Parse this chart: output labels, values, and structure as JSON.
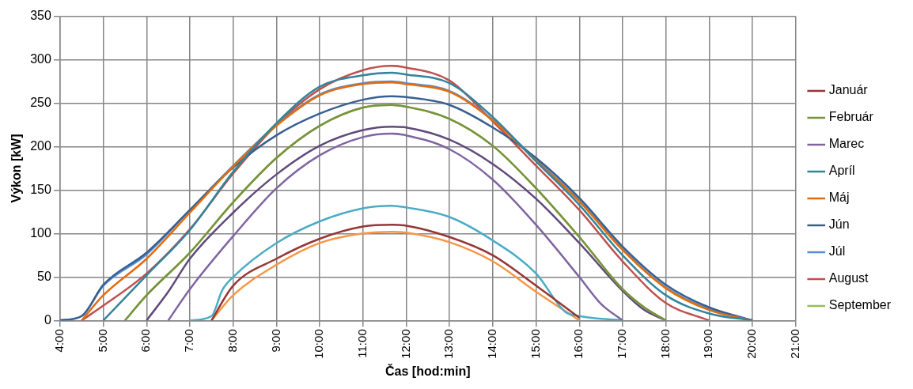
{
  "chart_data": {
    "type": "line",
    "xlabel": "Čas [hod:min]",
    "ylabel": "Výkon [kW]",
    "xlim": [
      4,
      21
    ],
    "xticks": [
      {
        "value": 4,
        "label": "4:00"
      },
      {
        "value": 5,
        "label": "5:00"
      },
      {
        "value": 6,
        "label": "6:00"
      },
      {
        "value": 7,
        "label": "7:00"
      },
      {
        "value": 8,
        "label": "8:00"
      },
      {
        "value": 9,
        "label": "9:00"
      },
      {
        "value": 10,
        "label": "10:00"
      },
      {
        "value": 11,
        "label": "11:00"
      },
      {
        "value": 12,
        "label": "12:00"
      },
      {
        "value": 13,
        "label": "13:00"
      },
      {
        "value": 14,
        "label": "14:00"
      },
      {
        "value": 15,
        "label": "15:00"
      },
      {
        "value": 16,
        "label": "16:00"
      },
      {
        "value": 17,
        "label": "17:00"
      },
      {
        "value": 18,
        "label": "18:00"
      },
      {
        "value": 19,
        "label": "19:00"
      },
      {
        "value": 20,
        "label": "20:00"
      },
      {
        "value": 21,
        "label": "21:00"
      }
    ],
    "ylim": [
      0,
      350
    ],
    "yticks": [
      0,
      50,
      100,
      150,
      200,
      250,
      300,
      350
    ],
    "grid": true,
    "legend": "right",
    "line_style": "solid",
    "series": [
      {
        "name": "Január",
        "color": "#953735",
        "x": [
          7.5,
          8,
          9,
          10,
          11,
          11.67,
          12,
          13,
          14,
          15,
          16
        ],
        "values": [
          0,
          40,
          71,
          94,
          108,
          110,
          109,
          96,
          75,
          40,
          3
        ]
      },
      {
        "name": "Február",
        "color": "#77933c",
        "x": [
          5.5,
          6,
          7,
          8,
          9,
          10,
          11,
          11.67,
          12,
          13,
          14,
          15,
          16,
          17,
          17.5,
          18
        ],
        "values": [
          0,
          29,
          78,
          136,
          187,
          224,
          245,
          248,
          246,
          232,
          201,
          152,
          96,
          36,
          15,
          0
        ]
      },
      {
        "name": "Marec",
        "color": "#8064a2",
        "x": [
          6.5,
          7,
          8,
          9,
          10,
          11,
          11.67,
          12,
          13,
          14,
          15,
          16,
          16.5,
          17
        ],
        "values": [
          0,
          36,
          97,
          152,
          190,
          211,
          215,
          213,
          197,
          162,
          110,
          50,
          19,
          0
        ]
      },
      {
        "name": "Apríl",
        "color": "#31859c",
        "x": [
          5,
          6,
          7,
          8,
          9,
          10,
          11,
          11.67,
          12,
          13,
          14,
          15,
          16,
          17,
          18,
          19,
          20
        ],
        "values": [
          0,
          52,
          104,
          171,
          227,
          269,
          282,
          285,
          283,
          273,
          234,
          183,
          133,
          75,
          29,
          8,
          0
        ]
      },
      {
        "name": "Máj",
        "color": "#e46c0a",
        "x": [
          4.5,
          5,
          6,
          7,
          8,
          9,
          10,
          11,
          11.67,
          12,
          13,
          14,
          15,
          16,
          17,
          18,
          19,
          20
        ],
        "values": [
          0,
          29,
          71,
          124,
          177,
          224,
          259,
          272,
          274,
          272,
          263,
          230,
          184,
          137,
          81,
          37,
          12,
          0
        ]
      },
      {
        "name": "Jún",
        "color": "#376092",
        "x": [
          4,
          4.5,
          5,
          6,
          7,
          8,
          9,
          10,
          11,
          11.67,
          12,
          13,
          14,
          15,
          16,
          17,
          18,
          19,
          20
        ],
        "values": [
          0,
          5,
          41,
          78,
          127,
          176,
          213,
          238,
          254,
          258,
          257,
          248,
          222,
          187,
          141,
          85,
          41,
          15,
          0
        ]
      },
      {
        "name": "Júl",
        "color": "#558ed5",
        "x": [
          4,
          4.5,
          5,
          6,
          7,
          8,
          9,
          10,
          11,
          11.67,
          12,
          13,
          14,
          15,
          16,
          17,
          18,
          19,
          20
        ],
        "values": [
          0,
          5,
          40,
          76,
          127,
          178,
          225,
          260,
          273,
          275,
          273,
          264,
          231,
          185,
          138,
          82,
          38,
          13,
          0
        ]
      },
      {
        "name": "August",
        "color": "#c0504d",
        "x": [
          4.5,
          5,
          6,
          7,
          8,
          9,
          10,
          11,
          11.67,
          12,
          13,
          14,
          15,
          16,
          17,
          18,
          19
        ],
        "values": [
          0,
          17,
          54,
          105,
          169,
          225,
          266,
          288,
          293,
          291,
          276,
          229,
          178,
          127,
          68,
          20,
          0
        ]
      },
      {
        "name": "September",
        "color": "#9bbb59",
        "x": [
          5.5,
          6,
          7,
          8,
          9,
          10,
          11,
          11.67,
          12,
          13,
          14,
          15,
          16,
          17,
          17.5,
          18
        ],
        "values": [
          0,
          29,
          78,
          136,
          187,
          224,
          245,
          248,
          246,
          232,
          201,
          152,
          96,
          36,
          15,
          0
        ]
      },
      {
        "color": "#604a7b",
        "x": [
          6,
          6.5,
          7,
          8,
          9,
          10,
          11,
          11.67,
          12,
          13,
          14,
          15,
          16,
          17,
          17.5,
          18
        ],
        "values": [
          0,
          33,
          71,
          124,
          168,
          201,
          219,
          223,
          222,
          208,
          180,
          140,
          89,
          34,
          12,
          0
        ]
      },
      {
        "color": "#4bacc6",
        "x": [
          7,
          7.5,
          7.75,
          8,
          9,
          10,
          11,
          11.67,
          12,
          13,
          14,
          15,
          15.67,
          16,
          17
        ],
        "values": [
          0,
          5,
          35,
          50,
          89,
          114,
          129,
          132,
          130,
          119,
          92,
          54,
          10,
          5,
          0
        ]
      },
      {
        "color": "#f79646",
        "x": [
          7.5,
          8,
          9,
          10,
          11,
          11.67,
          12,
          13,
          14,
          15,
          16
        ],
        "values": [
          0,
          29,
          64,
          89,
          100,
          102,
          101,
          90,
          68,
          33,
          0
        ]
      }
    ]
  }
}
